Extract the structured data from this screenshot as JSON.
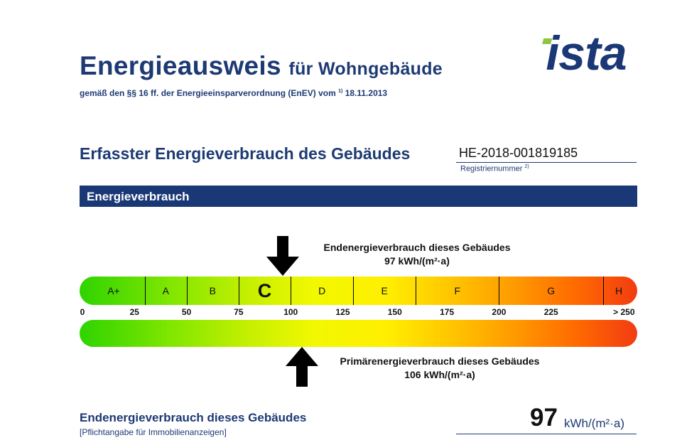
{
  "header": {
    "title_main": "Energieausweis",
    "title_sub": "für Wohngebäude",
    "subtitle_text": "gemäß den §§ 16 ff. der Energieeinsparverordnung (EnEV) vom",
    "subtitle_footnote": "1)",
    "subtitle_date": "18.11.2013"
  },
  "logo": {
    "text": "ista",
    "color_dark": "#1b3876",
    "color_accent": "#8cc63f"
  },
  "section": {
    "title": "Erfasster Energieverbrauch des Gebäudes",
    "registration_number": "HE-2018-001819185",
    "registration_label": "Registriernummer",
    "registration_footnote": "2)"
  },
  "banner": {
    "text": "Energieverbrauch",
    "color": "#1b3876"
  },
  "scale": {
    "classes": [
      {
        "label": "A+",
        "from": 0,
        "to": 30
      },
      {
        "label": "A",
        "from": 30,
        "to": 50
      },
      {
        "label": "B",
        "from": 50,
        "to": 75
      },
      {
        "label": "C",
        "from": 75,
        "to": 100,
        "active": true
      },
      {
        "label": "D",
        "from": 100,
        "to": 130
      },
      {
        "label": "E",
        "from": 130,
        "to": 160
      },
      {
        "label": "F",
        "from": 160,
        "to": 200
      },
      {
        "label": "G",
        "from": 200,
        "to": 250
      },
      {
        "label": "H",
        "from": 250,
        "to": 265
      }
    ],
    "ticks": [
      {
        "label": "0",
        "value": 0
      },
      {
        "label": "25",
        "value": 25
      },
      {
        "label": "50",
        "value": 50
      },
      {
        "label": "75",
        "value": 75
      },
      {
        "label": "100",
        "value": 100
      },
      {
        "label": "125",
        "value": 125
      },
      {
        "label": "150",
        "value": 150
      },
      {
        "label": "175",
        "value": 175
      },
      {
        "label": "200",
        "value": 200
      },
      {
        "label": "225",
        "value": 225
      },
      {
        "label": "> 250",
        "value": 260
      }
    ],
    "max_value": 265
  },
  "end_energy": {
    "title": "Endenergieverbrauch dieses Gebäudes",
    "value_text": "97 kWh/(m²·a)",
    "value": 97
  },
  "primary_energy": {
    "title": "Primärenergieverbrauch dieses Gebäudes",
    "value_text": "106 kWh/(m²·a)",
    "value": 106
  },
  "footer": {
    "label": "Endenergieverbrauch dieses Gebäudes",
    "note": "[Pflichtangabe für Immobilienanzeigen]",
    "value": "97",
    "unit": "kWh/(m²·a)"
  }
}
